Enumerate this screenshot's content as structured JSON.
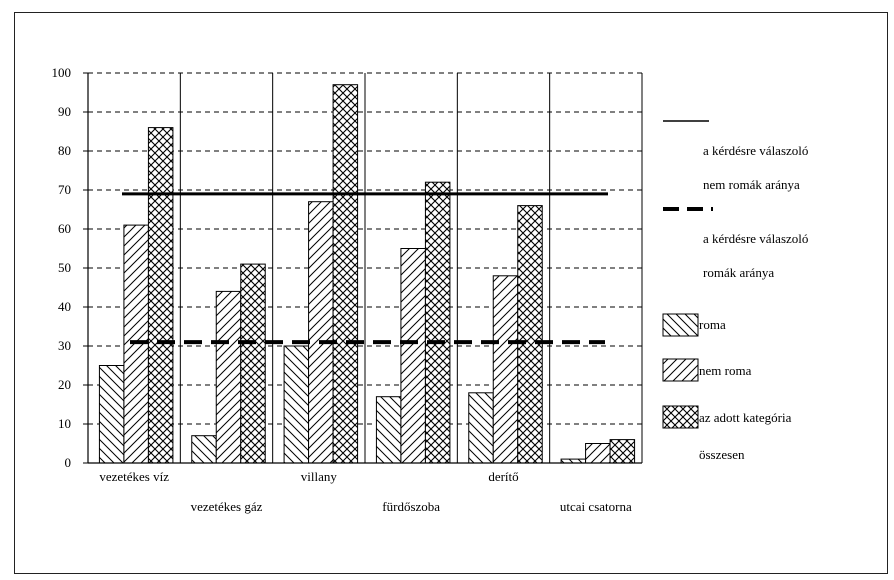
{
  "chart_data": {
    "type": "bar",
    "title": "",
    "xlabel": "",
    "ylabel": "",
    "ylim": [
      0,
      100
    ],
    "yticks": [
      0,
      10,
      20,
      30,
      40,
      50,
      60,
      70,
      80,
      90,
      100
    ],
    "grid": "horizontal dashed",
    "legend_position": "right",
    "categories": [
      "vezetékes víz",
      "vezetékes gáz",
      "villany",
      "fürdőszoba",
      "derítő",
      "utcai csatorna"
    ],
    "series": [
      {
        "name": "roma",
        "values": [
          25,
          7,
          30,
          17,
          18,
          1
        ],
        "pattern": "backslash-hatch"
      },
      {
        "name": "nem roma",
        "values": [
          61,
          44,
          67,
          55,
          48,
          5
        ],
        "pattern": "slash-hatch"
      },
      {
        "name": "az adott kategória összesen",
        "values": [
          86,
          51,
          97,
          72,
          66,
          6
        ],
        "pattern": "crosshatch"
      }
    ],
    "reference_lines": [
      {
        "name": "a kérdésre válaszoló nem romák aránya",
        "value": 69,
        "style": "solid"
      },
      {
        "name": "a kérdésre válaszoló romák aránya",
        "value": 31,
        "style": "dashed"
      }
    ]
  },
  "legend": {
    "line1_text_a": "a kérdésre válaszoló",
    "line1_text_b": "nem romák aránya",
    "line2_text_a": "a kérdésre válaszoló",
    "line2_text_b": "romák aránya",
    "roma": "roma",
    "nem_roma": "nem roma",
    "total_a": "az adott kategória",
    "total_b": "összesen"
  },
  "colors": {
    "ink": "#000000",
    "grid": "#000000",
    "background": "#ffffff"
  }
}
